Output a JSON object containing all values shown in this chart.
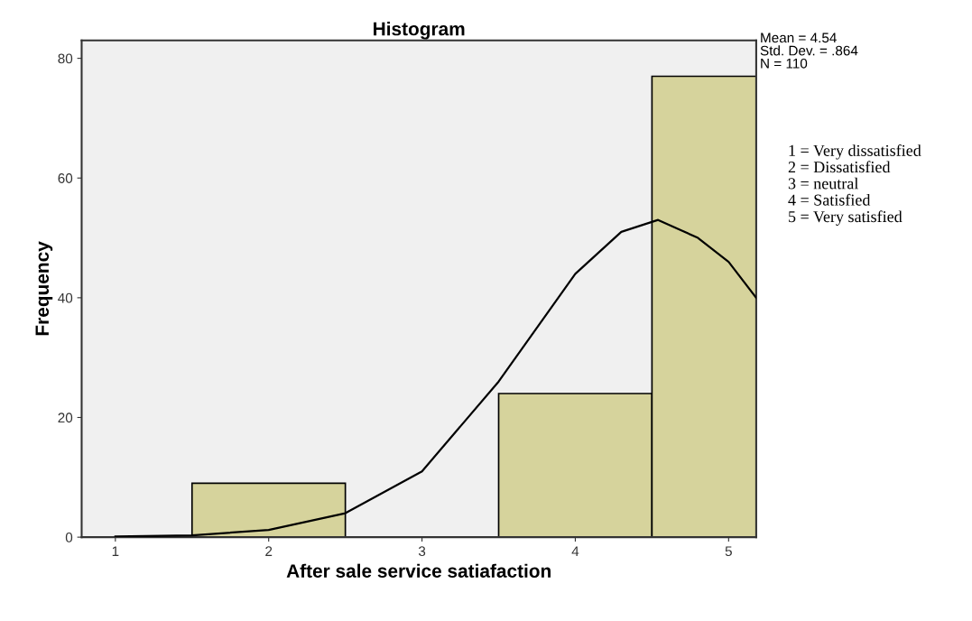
{
  "chart_data": {
    "type": "histogram",
    "title": "Histogram",
    "xlabel": "After sale service satiafaction",
    "ylabel": "Frequency",
    "bins": [
      1.5,
      2.5,
      3.5,
      4.5,
      5.5
    ],
    "values": [
      9,
      0,
      24,
      77
    ],
    "color": "#d6d39c",
    "series": [
      {
        "type": "line",
        "color": "#000000",
        "x": [
          1.0,
          1.5,
          2.0,
          2.5,
          3.0,
          3.5,
          4.0,
          4.3,
          4.54,
          4.8,
          5.0,
          5.18
        ],
        "values": [
          0.1,
          0.3,
          1.2,
          4,
          11,
          26,
          44,
          51,
          53,
          50,
          46,
          40
        ]
      }
    ],
    "xlim": [
      0.78,
      5.18
    ],
    "ylim": [
      0,
      83
    ],
    "xticks": [
      1,
      2,
      3,
      4,
      5
    ],
    "yticks": [
      0,
      20,
      40,
      60,
      80
    ],
    "grid": false,
    "legend": false,
    "annotations": [
      "Mean = 4.54\nStd. Dev. = .864\nN = 110",
      "1 = Very dissatisfied\n2 = Dissatisfied\n3 = neutral\n4 = Satisfied\n5 = Very satisfied"
    ]
  }
}
